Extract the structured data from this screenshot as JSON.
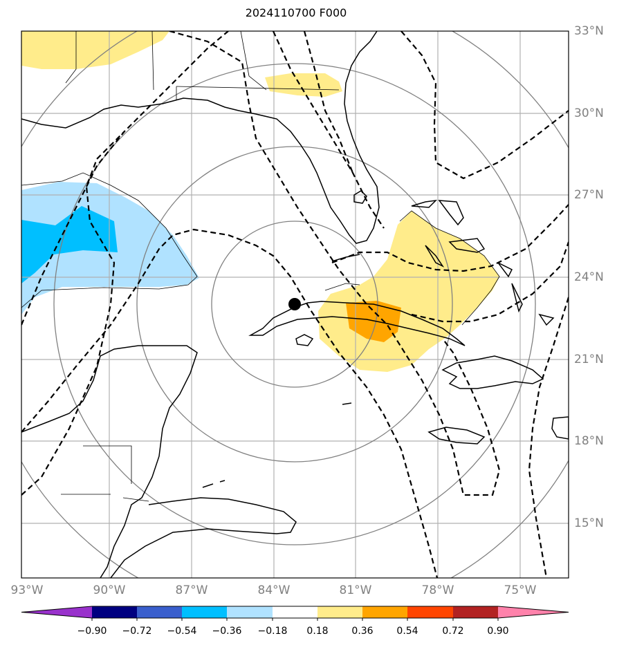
{
  "title": "2024110700 F000",
  "map": {
    "region": "Gulf of Mexico, Florida, Cuba, Caribbean",
    "storm_center": {
      "lon": -83.2,
      "lat": 22.9
    },
    "lat_labels": [
      "33°N",
      "30°N",
      "27°N",
      "24°N",
      "21°N",
      "18°N",
      "15°N"
    ],
    "lon_labels": [
      "93°W",
      "90°W",
      "87°W",
      "84°W",
      "81°W",
      "78°W",
      "75°W"
    ],
    "range_rings": 4,
    "colors": {
      "coastline": "#000000",
      "gridline": "#b0b0b0",
      "ring": "#808080",
      "contour_dashed": "#000000",
      "storm_marker": "#000000"
    }
  },
  "colorbar": {
    "tick_labels": [
      "−0.90",
      "−0.72",
      "−0.54",
      "−0.36",
      "−0.18",
      "0.18",
      "0.36",
      "0.54",
      "0.72",
      "0.90"
    ],
    "bins": [
      {
        "color": "#9932CC"
      },
      {
        "color": "#000080"
      },
      {
        "color": "#3A5FCD"
      },
      {
        "color": "#00BFFF"
      },
      {
        "color": "#B0E2FF"
      },
      {
        "color": "#FFFFFF"
      },
      {
        "color": "#FFEC8B"
      },
      {
        "color": "#FFA500"
      },
      {
        "color": "#FF4500"
      },
      {
        "color": "#B22222"
      },
      {
        "color": "#FF82AB"
      }
    ]
  }
}
